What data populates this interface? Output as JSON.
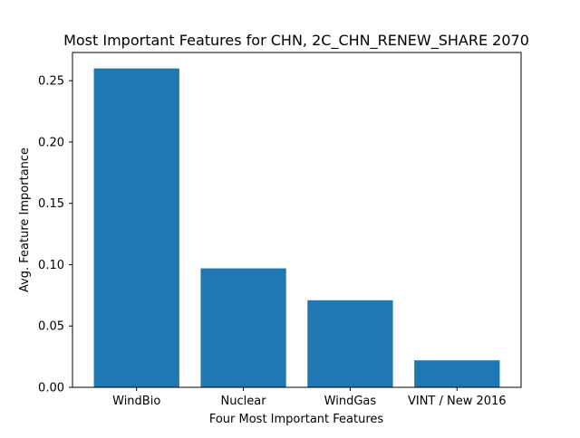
{
  "chart_data": {
    "type": "bar",
    "title": "Most Important Features for CHN, 2C_CHN_RENEW_SHARE 2070",
    "xlabel": "Four Most Important Features",
    "ylabel": "Avg. Feature Importance",
    "categories": [
      "WindBio",
      "Nuclear",
      "WindGas",
      "VINT / New 2016"
    ],
    "values": [
      0.26,
      0.097,
      0.071,
      0.022
    ],
    "ylim": [
      0,
      0.273
    ],
    "yticks": [
      0.0,
      0.05,
      0.1,
      0.15,
      0.2,
      0.25
    ],
    "ytick_labels": [
      "0.00",
      "0.05",
      "0.10",
      "0.15",
      "0.20",
      "0.25"
    ],
    "grid": false,
    "bar_color": "#1f77b4"
  }
}
